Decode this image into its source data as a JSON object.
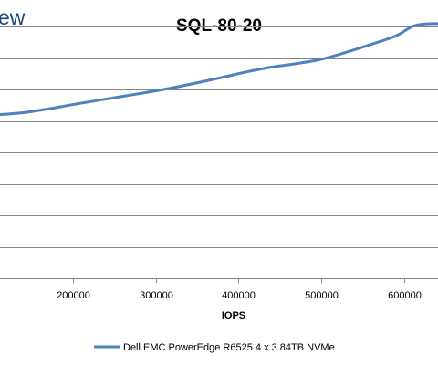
{
  "header": {
    "logo_fragment": "ew"
  },
  "chart_data": {
    "type": "line",
    "title": "SQL-80-20",
    "xlabel": "IOPS",
    "ylabel": "",
    "grid": true,
    "legend_position": "bottom",
    "xlim": [
      112000,
      641000
    ],
    "ylim": [
      0,
      8
    ],
    "x_ticks": [
      200000,
      300000,
      400000,
      500000,
      600000
    ],
    "y_gridlines": [
      1,
      2,
      3,
      4,
      5,
      6,
      7,
      8
    ],
    "series": [
      {
        "name": "Dell EMC PowerEdge R6525 4 x 3.84TB NVMe",
        "color": "#4f81bd",
        "points": [
          [
            112000,
            5.2
          ],
          [
            140000,
            5.26
          ],
          [
            170000,
            5.38
          ],
          [
            200000,
            5.52
          ],
          [
            230000,
            5.65
          ],
          [
            260000,
            5.78
          ],
          [
            290000,
            5.91
          ],
          [
            320000,
            6.05
          ],
          [
            350000,
            6.21
          ],
          [
            380000,
            6.38
          ],
          [
            410000,
            6.56
          ],
          [
            440000,
            6.71
          ],
          [
            470000,
            6.82
          ],
          [
            500000,
            6.96
          ],
          [
            530000,
            7.18
          ],
          [
            560000,
            7.43
          ],
          [
            590000,
            7.7
          ],
          [
            610000,
            8.0
          ],
          [
            625000,
            8.08
          ],
          [
            641000,
            8.09
          ]
        ]
      }
    ]
  },
  "colors": {
    "title": "#000000",
    "logo": "#1f497d",
    "axis_text": "#000000",
    "gridline": "#868686",
    "axis": "#868686",
    "series": "#4f81bd"
  }
}
